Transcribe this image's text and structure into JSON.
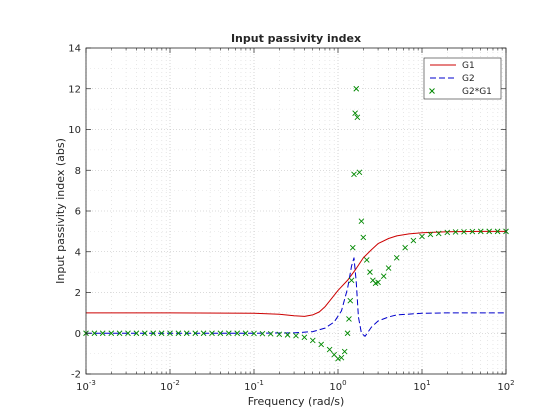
{
  "chart_data": {
    "type": "line",
    "title": "Input passivity index",
    "xlabel": "Frequency (rad/s)",
    "ylabel": "Input passivity index (abs)",
    "xscale": "log",
    "xlim": [
      0.001,
      100
    ],
    "ylim": [
      -2,
      14
    ],
    "yticks": [
      -2,
      0,
      2,
      4,
      6,
      8,
      10,
      12,
      14
    ],
    "yticklabels": [
      "-2",
      "0",
      "2",
      "4",
      "6",
      "8",
      "10",
      "12",
      "14"
    ],
    "xticklabels": [
      {
        "base": "10",
        "exp": "-3"
      },
      {
        "base": "10",
        "exp": "-2"
      },
      {
        "base": "10",
        "exp": "-1"
      },
      {
        "base": "10",
        "exp": "0"
      },
      {
        "base": "10",
        "exp": "1"
      },
      {
        "base": "10",
        "exp": "2"
      }
    ],
    "grid": true,
    "minor_grid": true,
    "legend_position": "top-right",
    "series": [
      {
        "name": "G1",
        "style": "solid",
        "color": "#cc0000",
        "x": [
          0.001,
          0.01,
          0.1,
          0.2,
          0.3,
          0.4,
          0.5,
          0.6,
          0.7,
          0.8,
          1.0,
          1.3,
          1.6,
          2.0,
          2.5,
          3.0,
          4.0,
          5.0,
          7.0,
          10,
          20,
          50,
          100
        ],
        "y": [
          1.0,
          1.0,
          0.98,
          0.93,
          0.86,
          0.83,
          0.9,
          1.05,
          1.3,
          1.6,
          2.1,
          2.6,
          3.1,
          3.7,
          4.1,
          4.4,
          4.65,
          4.78,
          4.88,
          4.93,
          4.98,
          5.0,
          5.0
        ]
      },
      {
        "name": "G2",
        "style": "dashed",
        "color": "#0000cc",
        "x": [
          0.001,
          0.01,
          0.1,
          0.3,
          0.5,
          0.7,
          0.9,
          1.1,
          1.3,
          1.45,
          1.55,
          1.65,
          1.75,
          1.9,
          2.1,
          2.5,
          3.0,
          4.0,
          5.0,
          10,
          20,
          50,
          100
        ],
        "y": [
          0.0,
          0.0,
          0.0,
          0.02,
          0.08,
          0.25,
          0.55,
          1.1,
          2.2,
          3.3,
          3.7,
          2.5,
          0.8,
          0.0,
          -0.15,
          0.3,
          0.6,
          0.8,
          0.9,
          0.98,
          1.0,
          1.0,
          1.0
        ]
      },
      {
        "name": "G2*G1",
        "style": "x-markers",
        "color": "#008800",
        "x": [
          0.001,
          0.00126,
          0.00158,
          0.002,
          0.00251,
          0.00316,
          0.00398,
          0.00501,
          0.00631,
          0.00794,
          0.01,
          0.0126,
          0.0158,
          0.02,
          0.0251,
          0.0316,
          0.0398,
          0.0501,
          0.0631,
          0.0794,
          0.1,
          0.126,
          0.158,
          0.2,
          0.251,
          0.316,
          0.398,
          0.501,
          0.631,
          0.794,
          0.9,
          1.0,
          1.1,
          1.2,
          1.3,
          1.35,
          1.4,
          1.45,
          1.5,
          1.55,
          1.6,
          1.65,
          1.7,
          1.8,
          1.9,
          2.0,
          2.2,
          2.4,
          2.6,
          2.8,
          3.0,
          3.5,
          4.0,
          5.0,
          6.3,
          7.9,
          10,
          12.6,
          15.8,
          20,
          25.1,
          31.6,
          39.8,
          50.1,
          63.1,
          79.4,
          100
        ],
        "y": [
          0.0,
          0.0,
          0.0,
          0.0,
          0.0,
          0.0,
          0.0,
          0.0,
          0.0,
          0.0,
          0.0,
          0.0,
          0.0,
          0.0,
          0.0,
          0.0,
          0.0,
          0.0,
          0.0,
          0.0,
          -0.01,
          -0.02,
          -0.03,
          -0.05,
          -0.08,
          -0.12,
          -0.2,
          -0.35,
          -0.55,
          -0.8,
          -1.05,
          -1.25,
          -1.2,
          -0.9,
          0.0,
          0.7,
          1.6,
          2.6,
          4.2,
          7.8,
          10.8,
          12.0,
          10.6,
          7.9,
          5.5,
          4.7,
          3.6,
          3.0,
          2.6,
          2.45,
          2.5,
          2.8,
          3.2,
          3.7,
          4.2,
          4.55,
          4.75,
          4.85,
          4.9,
          4.95,
          4.97,
          4.98,
          4.99,
          5.0,
          5.0,
          5.0,
          5.0
        ]
      }
    ]
  }
}
